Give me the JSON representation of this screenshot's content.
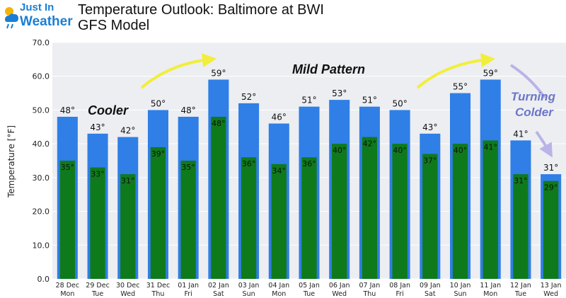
{
  "header": {
    "logo_line1": "Just In",
    "logo_line2": "Weather",
    "title_line1": "Temperature Outlook: Baltimore at BWI",
    "title_line2": "GFS Model"
  },
  "chart_data": {
    "type": "bar",
    "ylabel": "Temperature [°F]",
    "ylim": [
      0,
      70
    ],
    "yticks": [
      "0.0",
      "10.0",
      "20.0",
      "30.0",
      "40.0",
      "50.0",
      "60.0",
      "70.0"
    ],
    "grid": true,
    "categories": [
      [
        "28 Dec",
        "Mon"
      ],
      [
        "29 Dec",
        "Tue"
      ],
      [
        "30 Dec",
        "Wed"
      ],
      [
        "31 Dec",
        "Thu"
      ],
      [
        "01 Jan",
        "Fri"
      ],
      [
        "02 Jan",
        "Sat"
      ],
      [
        "03 Jan",
        "Sun"
      ],
      [
        "04 Jan",
        "Mon"
      ],
      [
        "05 Jan",
        "Tue"
      ],
      [
        "06 Jan",
        "Wed"
      ],
      [
        "07 Jan",
        "Thu"
      ],
      [
        "08 Jan",
        "Fri"
      ],
      [
        "09 Jan",
        "Sat"
      ],
      [
        "10 Jan",
        "Sun"
      ],
      [
        "11 Jan",
        "Mon"
      ],
      [
        "12 Jan",
        "Tue"
      ],
      [
        "13 Jan",
        "Wed"
      ]
    ],
    "series": [
      {
        "values": [
          48,
          43,
          42,
          50,
          48,
          59,
          52,
          46,
          51,
          53,
          51,
          50,
          43,
          55,
          59,
          41,
          31
        ],
        "color": "#2f7fe6"
      },
      {
        "values": [
          35,
          33,
          31,
          39,
          35,
          48,
          36,
          34,
          36,
          40,
          42,
          40,
          37,
          40,
          41,
          31,
          29
        ],
        "color": "#0f7a1c"
      }
    ],
    "annotations": [
      "Cooler",
      "Mild Pattern",
      "Turning",
      "Colder"
    ],
    "arrow_colors": {
      "yellow": "#f2ee3a",
      "purple": "#b9b4e6"
    }
  }
}
